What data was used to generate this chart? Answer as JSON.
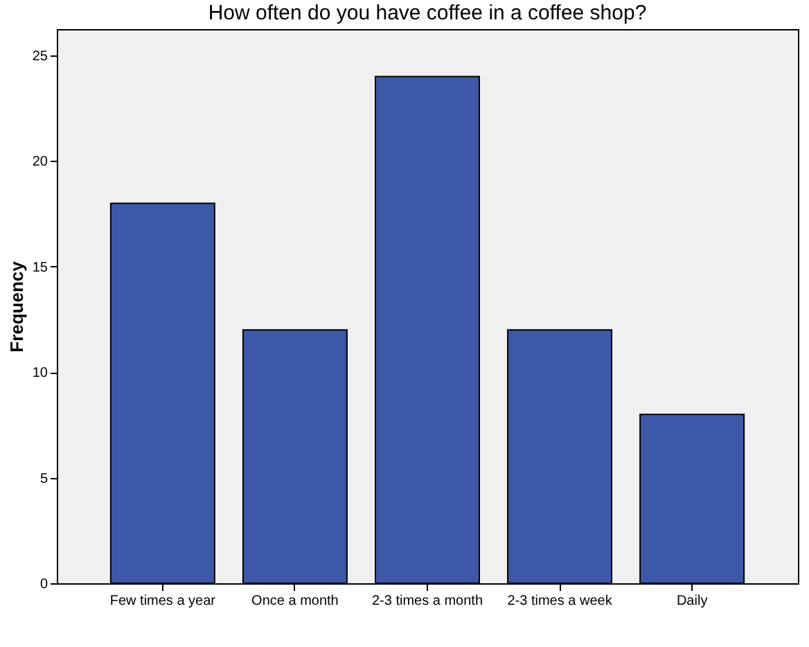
{
  "chart_data": {
    "type": "bar",
    "title": "How often do you have coffee in a coffee shop?",
    "ylabel": "Frequency",
    "categories": [
      "Few times a year",
      "Once a month",
      "2-3 times a month",
      "2-3 times a week",
      "Daily"
    ],
    "values": [
      18,
      12,
      24,
      12,
      8
    ],
    "color": "#3d58a8",
    "ylim": [
      0,
      26.25
    ],
    "yticks": [
      0,
      5,
      10,
      15,
      20,
      25
    ],
    "grid": false
  }
}
